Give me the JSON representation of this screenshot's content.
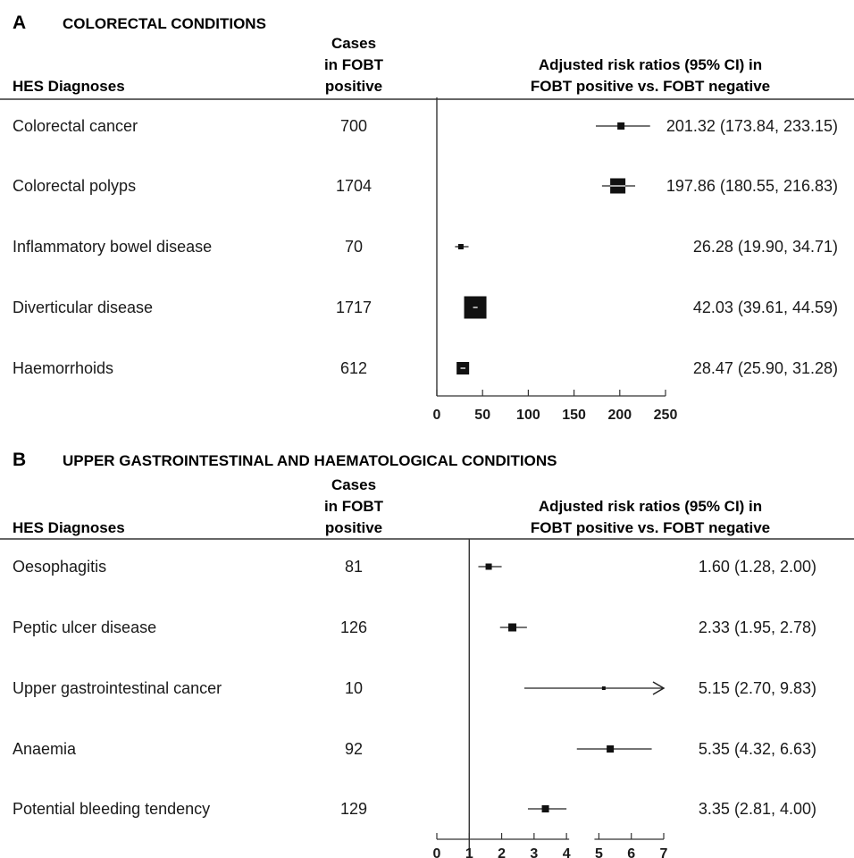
{
  "panels": [
    {
      "letter": "A",
      "title": "COLORECTAL CONDITIONS",
      "col_diagnoses": "HES Diagnoses",
      "col_cases": [
        "Cases",
        "in FOBT",
        "positive"
      ],
      "col_rr": [
        "Adjusted risk ratios (95% CI) in",
        "FOBT positive vs. FOBT negative"
      ]
    },
    {
      "letter": "B",
      "title": "UPPER GASTROINTESTINAL AND HAEMATOLOGICAL CONDITIONS",
      "col_diagnoses": "HES Diagnoses",
      "col_cases": [
        "Cases",
        "in FOBT",
        "positive"
      ],
      "col_rr": [
        "Adjusted risk ratios (95% CI) in",
        "FOBT positive vs. FOBT negative"
      ]
    }
  ],
  "chart_data": [
    {
      "type": "forest",
      "panel": "A",
      "xlim": [
        0,
        250
      ],
      "xticks": [
        "0",
        "50",
        "100",
        "150",
        "200",
        "250"
      ],
      "reference_line": 0,
      "rows": [
        {
          "label": "Colorectal cancer",
          "cases": "700",
          "rr": 201.32,
          "lo": 173.84,
          "hi": 233.15,
          "text": "201.32 (173.84, 233.15)"
        },
        {
          "label": "Colorectal polyps",
          "cases": "1704",
          "rr": 197.86,
          "lo": 180.55,
          "hi": 216.83,
          "text": "197.86 (180.55, 216.83)"
        },
        {
          "label": "Inflammatory bowel disease",
          "cases": "70",
          "rr": 26.28,
          "lo": 19.9,
          "hi": 34.71,
          "text": "26.28 (19.90, 34.71)"
        },
        {
          "label": "Diverticular disease",
          "cases": "1717",
          "rr": 42.03,
          "lo": 39.61,
          "hi": 44.59,
          "text": "42.03 (39.61, 44.59)"
        },
        {
          "label": "Haemorrhoids",
          "cases": "612",
          "rr": 28.47,
          "lo": 25.9,
          "hi": 31.28,
          "text": "28.47 (25.90, 31.28)"
        }
      ]
    },
    {
      "type": "forest",
      "panel": "B",
      "xlim": [
        0,
        7
      ],
      "xticks": [
        "0",
        "1",
        "2",
        "3",
        "4",
        "5",
        "6",
        "7"
      ],
      "reference_line": 1,
      "rows": [
        {
          "label": "Oesophagitis",
          "cases": "81",
          "rr": 1.6,
          "lo": 1.28,
          "hi": 2.0,
          "text": "1.60 (1.28, 2.00)"
        },
        {
          "label": "Peptic ulcer disease",
          "cases": "126",
          "rr": 2.33,
          "lo": 1.95,
          "hi": 2.78,
          "text": "2.33 (1.95, 2.78)"
        },
        {
          "label": "Upper gastrointestinal cancer",
          "cases": "10",
          "rr": 5.15,
          "lo": 2.7,
          "hi": 9.83,
          "text": "5.15 (2.70, 9.83)",
          "arrow_right": true
        },
        {
          "label": "Anaemia",
          "cases": "92",
          "rr": 5.35,
          "lo": 4.32,
          "hi": 6.63,
          "text": "5.35 (4.32, 6.63)"
        },
        {
          "label": "Potential bleeding tendency",
          "cases": "129",
          "rr": 3.35,
          "lo": 2.81,
          "hi": 4.0,
          "text": "3.35 (2.81, 4.00)"
        }
      ]
    }
  ]
}
